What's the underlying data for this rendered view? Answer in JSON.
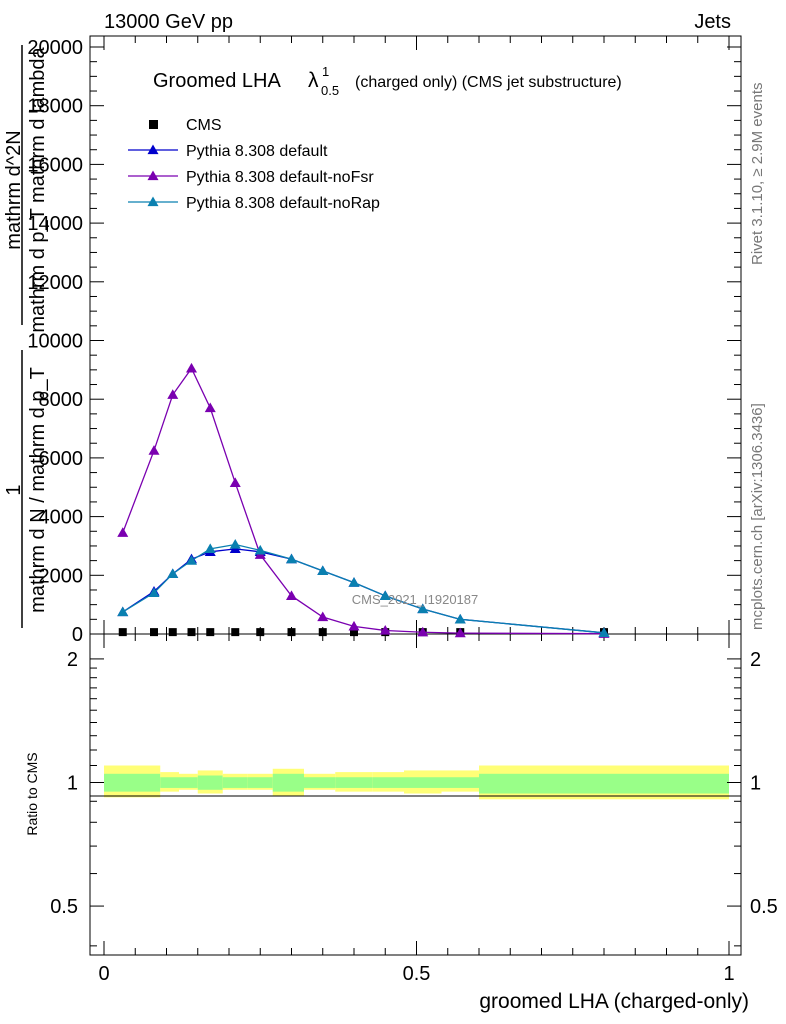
{
  "header": {
    "left": "13000 GeV pp",
    "right": "Jets"
  },
  "side_labels": {
    "rivet": "Rivet 3.1.10, ≥ 2.9M events",
    "mcplots": "mcplots.cern.ch [arXiv:1306.3436]"
  },
  "chart_data": [
    {
      "type": "line",
      "title_main": "Groomed LHA",
      "title_symbol": "λ",
      "title_sup": "1",
      "title_sub": "0.5",
      "title_rest": "(charged only) (CMS jet substructure)",
      "watermark": "CMS_2021_I1920187",
      "ylabel_frac_num": "1",
      "ylabel_frac_den": "mathrm d N / mathrm d p_T",
      "ylabel_num": "mathrm d^2N",
      "ylabel_den": "mathrm d p_T mathrm d lambda",
      "xlim": [
        0,
        1
      ],
      "ylim": [
        0,
        20500
      ],
      "yticks": [
        0,
        2000,
        4000,
        6000,
        8000,
        10000,
        12000,
        14000,
        16000,
        18000,
        20000
      ],
      "ytick_labels": [
        "0",
        "2000",
        "4000",
        "6000",
        "8000",
        "10000",
        "12000",
        "14000",
        "16000",
        "18000",
        "20000"
      ],
      "legend_position": "top-left",
      "series": [
        {
          "name": "CMS",
          "color": "#000000",
          "marker": "square",
          "x": [
            0.03,
            0.08,
            0.11,
            0.14,
            0.17,
            0.21,
            0.25,
            0.3,
            0.35,
            0.4,
            0.45,
            0.51,
            0.57,
            0.8
          ],
          "y": [
            30,
            30,
            30,
            30,
            30,
            30,
            30,
            30,
            30,
            30,
            30,
            30,
            30,
            30
          ]
        },
        {
          "name": "Pythia 8.308 default",
          "color": "#0000cc",
          "marker": "triangle",
          "x": [
            0.03,
            0.08,
            0.11,
            0.14,
            0.17,
            0.21,
            0.25,
            0.3,
            0.35,
            0.4,
            0.45,
            0.51,
            0.57,
            0.8
          ],
          "y": [
            750,
            1450,
            2050,
            2550,
            2800,
            2900,
            2800,
            2550,
            2150,
            1750,
            1300,
            850,
            500,
            40
          ]
        },
        {
          "name": "Pythia 8.308 default-noFsr",
          "color": "#7a00b0",
          "marker": "triangle",
          "x": [
            0.03,
            0.08,
            0.11,
            0.14,
            0.17,
            0.21,
            0.25,
            0.3,
            0.35,
            0.4,
            0.45,
            0.51,
            0.57,
            0.8
          ],
          "y": [
            3450,
            6250,
            8150,
            9050,
            7700,
            5150,
            2700,
            1300,
            580,
            260,
            120,
            60,
            30,
            10
          ]
        },
        {
          "name": "Pythia 8.308 default-noRap",
          "color": "#0a80b0",
          "marker": "triangle",
          "x": [
            0.03,
            0.08,
            0.11,
            0.14,
            0.17,
            0.21,
            0.25,
            0.3,
            0.35,
            0.4,
            0.45,
            0.51,
            0.57,
            0.8
          ],
          "y": [
            750,
            1400,
            2050,
            2500,
            2900,
            3050,
            2850,
            2550,
            2150,
            1750,
            1300,
            850,
            500,
            40
          ]
        }
      ]
    },
    {
      "type": "area",
      "ylabel": "Ratio to CMS",
      "xlabel": "groomed LHA (charged-only)",
      "xlim": [
        0,
        1
      ],
      "ylim": [
        0.38,
        2.3
      ],
      "yscale": "log",
      "xticks": [
        0,
        0.5,
        1
      ],
      "xtick_labels": [
        "0",
        "0.5",
        "1"
      ],
      "yticks": [
        0.5,
        1,
        2
      ],
      "ytick_labels": [
        "0.5",
        "1",
        "2"
      ],
      "reference_line": 1,
      "bin_edges": [
        0,
        0.06,
        0.09,
        0.12,
        0.15,
        0.19,
        0.23,
        0.27,
        0.32,
        0.37,
        0.43,
        0.48,
        0.54,
        0.6,
        1.0
      ],
      "band_total_lo": [
        0.92,
        0.92,
        0.95,
        0.96,
        0.94,
        0.96,
        0.96,
        0.93,
        0.96,
        0.95,
        0.95,
        0.94,
        0.95,
        0.91,
        0.75
      ],
      "band_total_hi": [
        1.1,
        1.1,
        1.06,
        1.05,
        1.07,
        1.05,
        1.05,
        1.08,
        1.05,
        1.06,
        1.06,
        1.07,
        1.07,
        1.1,
        1.37
      ],
      "band_stat_lo": [
        0.95,
        0.95,
        0.97,
        0.97,
        0.96,
        0.97,
        0.97,
        0.95,
        0.97,
        0.97,
        0.97,
        0.97,
        0.97,
        0.94,
        0.88
      ],
      "band_stat_hi": [
        1.05,
        1.05,
        1.03,
        1.03,
        1.04,
        1.03,
        1.03,
        1.05,
        1.03,
        1.03,
        1.03,
        1.03,
        1.03,
        1.05,
        1.16
      ],
      "band_total_color": "#ffff77",
      "band_stat_color": "#99ff88"
    }
  ]
}
